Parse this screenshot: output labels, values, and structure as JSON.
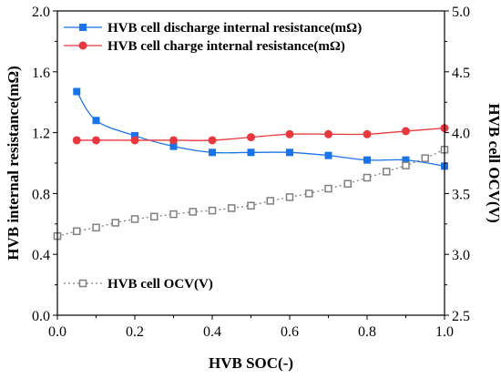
{
  "chart_data": {
    "type": "line",
    "xlabel": "HVB SOC(-)",
    "ylabel_left": "HVB internal resistance(mΩ)",
    "ylabel_right": "HVB cell OCV(V)",
    "xlim": [
      0.0,
      1.0
    ],
    "ylim_left": [
      0.0,
      2.0
    ],
    "ylim_right": [
      2.5,
      5.0
    ],
    "x_ticks": [
      "0.0",
      "0.2",
      "0.4",
      "0.6",
      "0.8",
      "1.0"
    ],
    "y_left_ticks": [
      "0.0",
      "0.4",
      "0.8",
      "1.2",
      "1.6",
      "2.0"
    ],
    "y_right_ticks": [
      "2.5",
      "3.0",
      "3.5",
      "4.0",
      "4.5",
      "5.0"
    ],
    "legend_placement": "top-left and bottom-left",
    "grid": false,
    "series": [
      {
        "name": "HVB cell discharge internal resistance(mΩ)",
        "axis": "left",
        "color": "#1a73e8",
        "marker": "square",
        "line": "smooth-solid",
        "x": [
          0.05,
          0.1,
          0.2,
          0.3,
          0.4,
          0.5,
          0.6,
          0.7,
          0.8,
          0.9,
          1.0
        ],
        "y": [
          1.47,
          1.28,
          1.18,
          1.11,
          1.07,
          1.07,
          1.07,
          1.05,
          1.02,
          1.02,
          0.98
        ]
      },
      {
        "name": "HVB cell charge internal resistance(mΩ)",
        "axis": "left",
        "color": "#e8383d",
        "marker": "circle",
        "line": "smooth-solid",
        "x": [
          0.05,
          0.1,
          0.2,
          0.3,
          0.4,
          0.5,
          0.6,
          0.7,
          0.8,
          0.9,
          1.0
        ],
        "y": [
          1.15,
          1.15,
          1.15,
          1.15,
          1.15,
          1.17,
          1.19,
          1.19,
          1.19,
          1.21,
          1.23
        ]
      },
      {
        "name": "HVB cell OCV(V)",
        "axis": "right",
        "color": "#808080",
        "marker": "hollow-square",
        "line": "dotted",
        "x": [
          0.0,
          0.05,
          0.1,
          0.15,
          0.2,
          0.25,
          0.3,
          0.35,
          0.4,
          0.45,
          0.5,
          0.55,
          0.6,
          0.65,
          0.7,
          0.75,
          0.8,
          0.85,
          0.9,
          0.95,
          1.0
        ],
        "y": [
          3.15,
          3.19,
          3.22,
          3.26,
          3.29,
          3.31,
          3.33,
          3.35,
          3.36,
          3.38,
          3.4,
          3.44,
          3.47,
          3.5,
          3.54,
          3.58,
          3.63,
          3.68,
          3.73,
          3.79,
          3.86
        ]
      }
    ]
  }
}
